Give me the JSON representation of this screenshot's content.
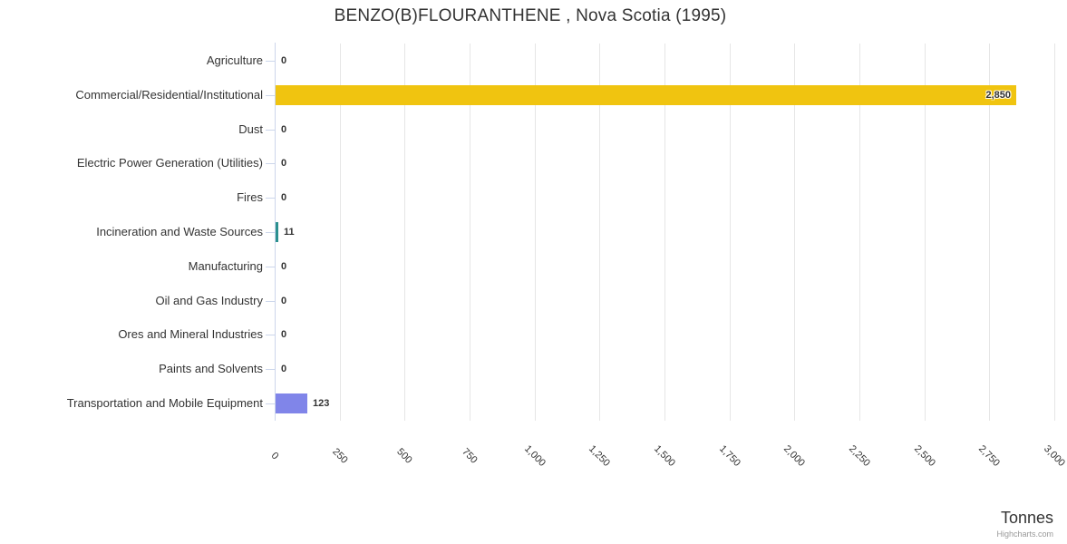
{
  "credits": "Highcharts.com",
  "chart_data": {
    "type": "bar",
    "orientation": "horizontal",
    "title": "BENZO(B)FLOURANTHENE , Nova Scotia (1995)",
    "xlabel": "Tonnes",
    "categories": [
      "Agriculture",
      "Commercial/Residential/Institutional",
      "Dust",
      "Electric Power Generation (Utilities)",
      "Fires",
      "Incineration and Waste Sources",
      "Manufacturing",
      "Oil and Gas Industry",
      "Ores and Mineral Industries",
      "Paints and Solvents",
      "Transportation and Mobile Equipment"
    ],
    "values": [
      0,
      2850,
      0,
      0,
      0,
      11,
      0,
      0,
      0,
      0,
      123
    ],
    "value_labels": [
      "0",
      "2,850",
      "0",
      "0",
      "0",
      "11",
      "0",
      "0",
      "0",
      "0",
      "123"
    ],
    "bar_colors": [
      null,
      "#f0c410",
      null,
      null,
      null,
      "#2b908f",
      null,
      null,
      null,
      null,
      "#8085e9"
    ],
    "xlim": [
      0,
      3000
    ],
    "tick_interval": 250,
    "tick_labels": [
      "0",
      "250",
      "500",
      "750",
      "1,000",
      "1,250",
      "1,500",
      "1,750",
      "2,000",
      "2,250",
      "2,500",
      "2,750",
      "3,000"
    ],
    "grid": true,
    "legend": "none",
    "colors": {
      "grid": "#e6e6e6",
      "axis": "#ccd6eb",
      "text": "#333333",
      "muted": "#999999"
    }
  }
}
